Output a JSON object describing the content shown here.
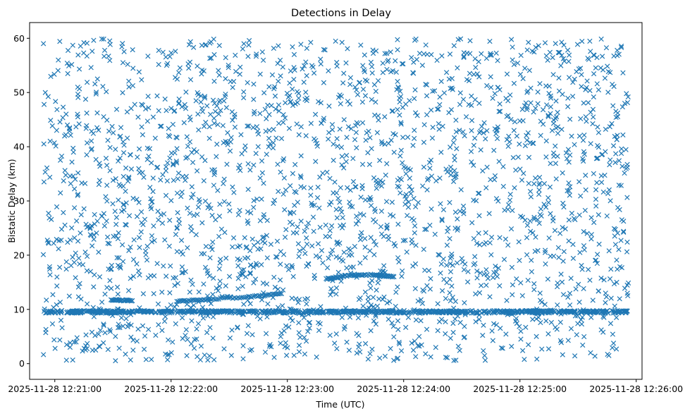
{
  "chart_data": {
    "type": "scatter",
    "title": "Detections in Delay",
    "xlabel": "Time (UTC)",
    "ylabel": "Bistatic Delay (km)",
    "marker": "x",
    "color": "#1f77b4",
    "grid": false,
    "legend": "none",
    "xlim": [
      "2025-11-28 12:20:47",
      "2025-11-28 12:26:03"
    ],
    "ylim": [
      -2.9,
      62.9
    ],
    "xticks": [
      "2025-11-28 12:21:00",
      "2025-11-28 12:22:00",
      "2025-11-28 12:23:00",
      "2025-11-28 12:24:00",
      "2025-11-28 12:25:00",
      "2025-11-28 12:26:00"
    ],
    "yticks": [
      0,
      10,
      20,
      30,
      40,
      50,
      60
    ],
    "data_range": {
      "x": [
        "2025-11-28 12:20:54",
        "2025-11-28 12:25:56"
      ],
      "y": [
        0.5,
        59.9
      ]
    },
    "series": [
      {
        "description": "dense horizontal band of detections",
        "x_range": [
          "2025-11-28 12:20:54",
          "2025-11-28 12:25:56"
        ],
        "y_values": [
          9.4,
          9.6,
          9.7
        ]
      },
      {
        "description": "rising track",
        "x": [
          "2025-11-28 12:22:03",
          "2025-11-28 12:22:20",
          "2025-11-28 12:22:40",
          "2025-11-28 12:22:57"
        ],
        "y": [
          11.5,
          11.9,
          12.3,
          12.9
        ]
      },
      {
        "description": "short track",
        "x": [
          "2025-11-28 12:21:29",
          "2025-11-28 12:21:40"
        ],
        "y": [
          11.8,
          11.6
        ]
      },
      {
        "description": "rising track",
        "x": [
          "2025-11-28 12:23:20",
          "2025-11-28 12:23:30",
          "2025-11-28 12:23:45",
          "2025-11-28 12:23:55"
        ],
        "y": [
          15.6,
          16.2,
          16.4,
          16.0
        ]
      }
    ]
  }
}
